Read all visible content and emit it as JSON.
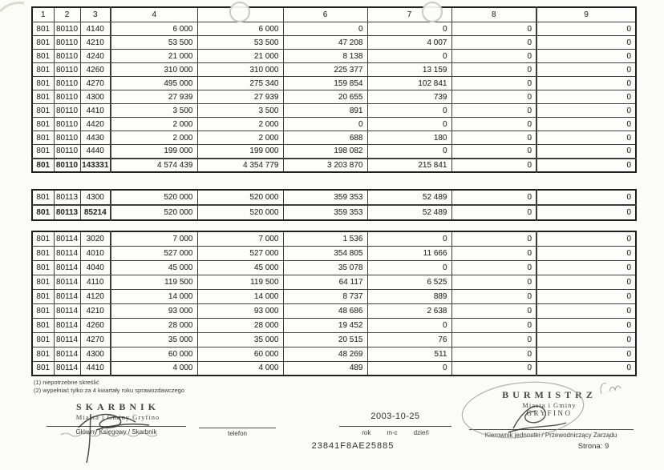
{
  "table": {
    "headers": [
      "1",
      "2",
      "3",
      "4",
      "",
      "6",
      "7",
      "8",
      "9"
    ],
    "sections": [
      {
        "name": "80110",
        "rows": [
          [
            "801",
            "80110",
            "4140",
            "6 000",
            "6 000",
            "0",
            "0",
            "0",
            "0"
          ],
          [
            "801",
            "80110",
            "4210",
            "53 500",
            "53 500",
            "47 208",
            "4 007",
            "0",
            "0"
          ],
          [
            "801",
            "80110",
            "4240",
            "21 000",
            "21 000",
            "8 138",
            "0",
            "0",
            "0"
          ],
          [
            "801",
            "80110",
            "4260",
            "310 000",
            "310 000",
            "225 377",
            "13 159",
            "0",
            "0"
          ],
          [
            "801",
            "80110",
            "4270",
            "495 000",
            "275 340",
            "159 854",
            "102 841",
            "0",
            "0"
          ],
          [
            "801",
            "80110",
            "4300",
            "27 939",
            "27 939",
            "20 655",
            "739",
            "0",
            "0"
          ],
          [
            "801",
            "80110",
            "4410",
            "3 500",
            "3 500",
            "891",
            "0",
            "0",
            "0"
          ],
          [
            "801",
            "80110",
            "4420",
            "2 000",
            "2 000",
            "0",
            "0",
            "0",
            "0"
          ],
          [
            "801",
            "80110",
            "4430",
            "2 000",
            "2 000",
            "688",
            "180",
            "0",
            "0"
          ],
          [
            "801",
            "80110",
            "4440",
            "199 000",
            "199 000",
            "198 082",
            "0",
            "0",
            "0"
          ]
        ],
        "total": [
          "801",
          "80110",
          "143331",
          "4 574 439",
          "4 354 779",
          "3 203 870",
          "215 841",
          "0",
          "0"
        ]
      },
      {
        "name": "80113",
        "rows": [
          [
            "801",
            "80113",
            "4300",
            "520 000",
            "520 000",
            "359 353",
            "52 489",
            "0",
            "0"
          ]
        ],
        "total": [
          "801",
          "80113",
          "85214",
          "520 000",
          "520 000",
          "359 353",
          "52 489",
          "0",
          "0"
        ]
      },
      {
        "name": "80114",
        "rows": [
          [
            "801",
            "80114",
            "3020",
            "7 000",
            "7 000",
            "1 536",
            "0",
            "0",
            "0"
          ],
          [
            "801",
            "80114",
            "4010",
            "527 000",
            "527 000",
            "354 805",
            "11 666",
            "0",
            "0"
          ],
          [
            "801",
            "80114",
            "4040",
            "45 000",
            "45 000",
            "35 078",
            "0",
            "0",
            "0"
          ],
          [
            "801",
            "80114",
            "4110",
            "119 500",
            "119 500",
            "64 117",
            "6 525",
            "0",
            "0"
          ],
          [
            "801",
            "80114",
            "4120",
            "14 000",
            "14 000",
            "8 737",
            "889",
            "0",
            "0"
          ],
          [
            "801",
            "80114",
            "4210",
            "93 000",
            "93 000",
            "48 686",
            "2 638",
            "0",
            "0"
          ],
          [
            "801",
            "80114",
            "4260",
            "28 000",
            "28 000",
            "19 452",
            "0",
            "0",
            "0"
          ],
          [
            "801",
            "80114",
            "4270",
            "35 000",
            "35 000",
            "20 515",
            "76",
            "0",
            "0"
          ],
          [
            "801",
            "80114",
            "4300",
            "60 000",
            "60 000",
            "48 269",
            "511",
            "0",
            "0"
          ],
          [
            "801",
            "80114",
            "4410",
            "4 000",
            "4 000",
            "489",
            "0",
            "0",
            "0"
          ]
        ],
        "total": null
      }
    ]
  },
  "footnotes": [
    "(1) niepotrzebne skreślić",
    "(2) wypełniać tylko za 4 kwartały roku sprawozdawczego"
  ],
  "signatures": {
    "left": {
      "stamp_title": "SKARBNIK",
      "stamp_subtitle": "Miasta i Gminy Gryfino",
      "role_label": "Główny Księgowy / Skarbnik"
    },
    "center": {
      "phone_label": "telefon",
      "date_value": "2003-10-25",
      "date_label_year": "rok",
      "date_label_month": "m-c",
      "date_label_day": "dzień",
      "doc_code": "23841F8AE25885"
    },
    "right": {
      "stamp_title": "BURMISTRZ",
      "stamp_subtitle": "Miasta i Gminy",
      "stamp_city": "GRYFINO",
      "role_label": "Kierownik jednostki / Przewodniczący Zarządu"
    }
  },
  "footer": {
    "page_label": "Strona: 9"
  }
}
